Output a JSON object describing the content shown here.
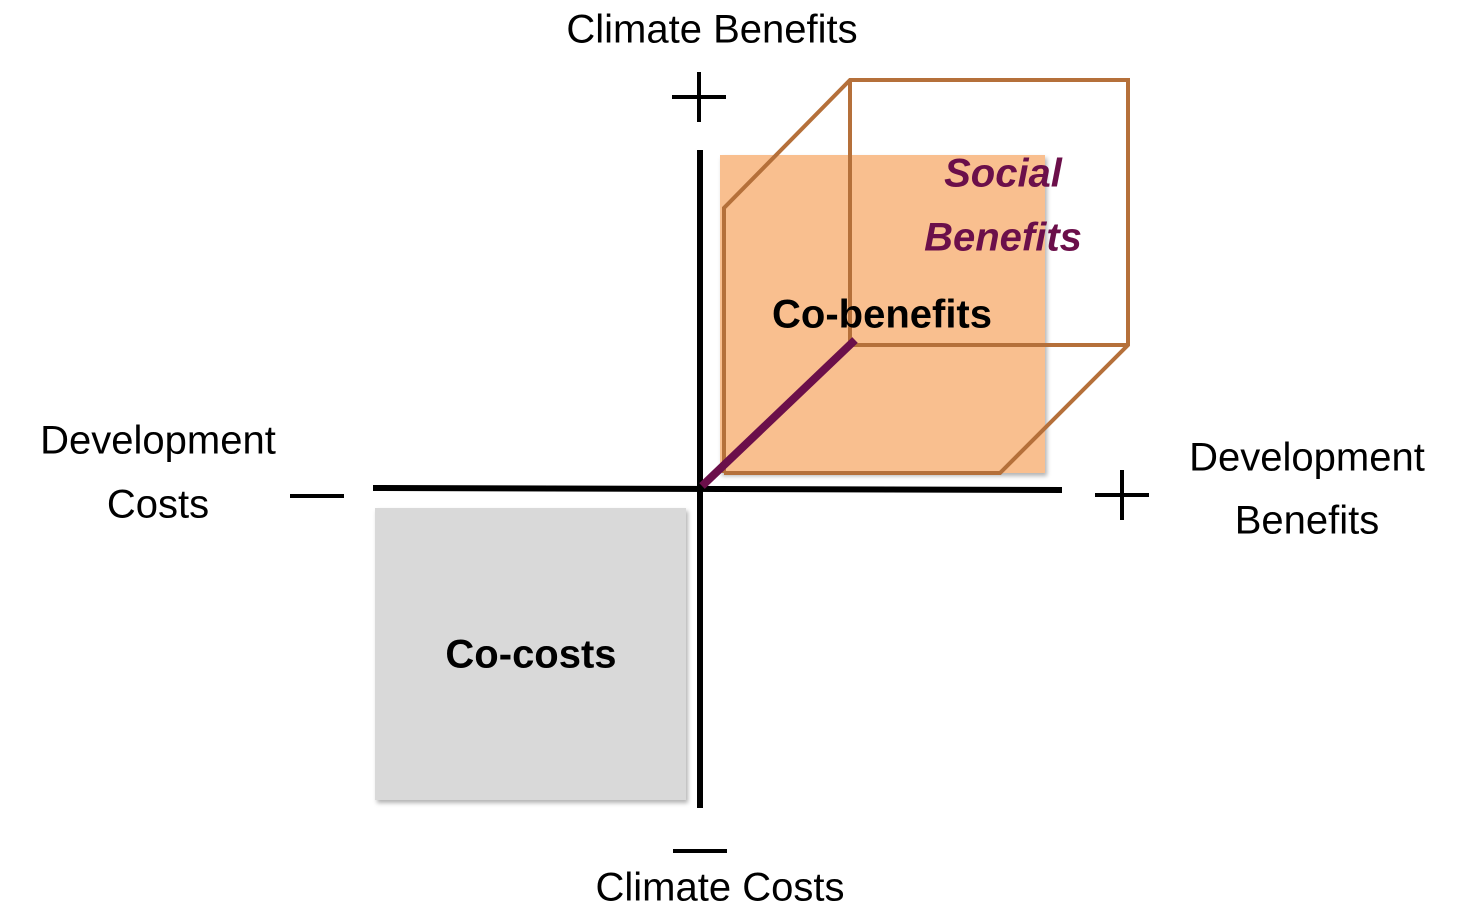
{
  "diagram": {
    "y_positive": "Climate Benefits",
    "y_negative": "Climate Costs",
    "x_negative": [
      "Development",
      "Costs"
    ],
    "x_positive": [
      "Development",
      "Benefits"
    ],
    "cube": [
      "Social",
      "Benefits"
    ],
    "upper_box": "Co-benefits",
    "lower_box": "Co-costs"
  }
}
